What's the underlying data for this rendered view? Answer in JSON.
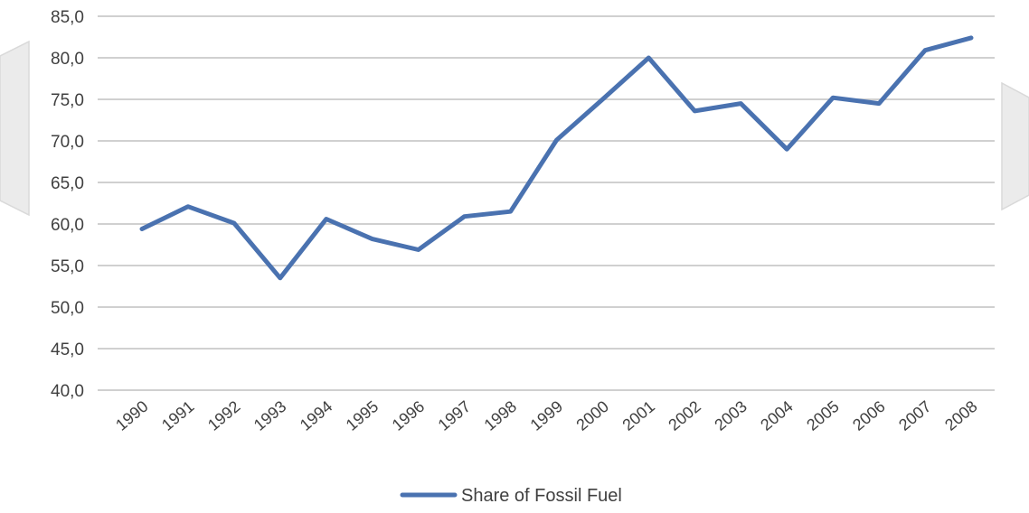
{
  "chart_data": {
    "type": "line",
    "title": "",
    "xlabel": "",
    "ylabel": "",
    "categories": [
      "1990",
      "1991",
      "1992",
      "1993",
      "1994",
      "1995",
      "1996",
      "1997",
      "1998",
      "1999",
      "2000",
      "2001",
      "2002",
      "2003",
      "2004",
      "2005",
      "2006",
      "2007",
      "2008"
    ],
    "series": [
      {
        "name": "Share of Fossil Fuel",
        "color": "#4a72b0",
        "values": [
          59.4,
          62.1,
          60.1,
          53.5,
          60.6,
          58.2,
          56.9,
          60.9,
          61.5,
          70.1,
          75.0,
          80.0,
          73.6,
          74.5,
          69.0,
          75.2,
          74.5,
          80.9,
          82.4
        ]
      }
    ],
    "ylim": [
      40,
      85
    ],
    "yticks": [
      40,
      45,
      50,
      55,
      60,
      65,
      70,
      75,
      80,
      85
    ],
    "ytick_labels": [
      "40,0",
      "45,0",
      "50,0",
      "55,0",
      "60,0",
      "65,0",
      "70,0",
      "75,0",
      "80,0",
      "85,0"
    ],
    "grid": true,
    "legend": "bottom-center"
  }
}
